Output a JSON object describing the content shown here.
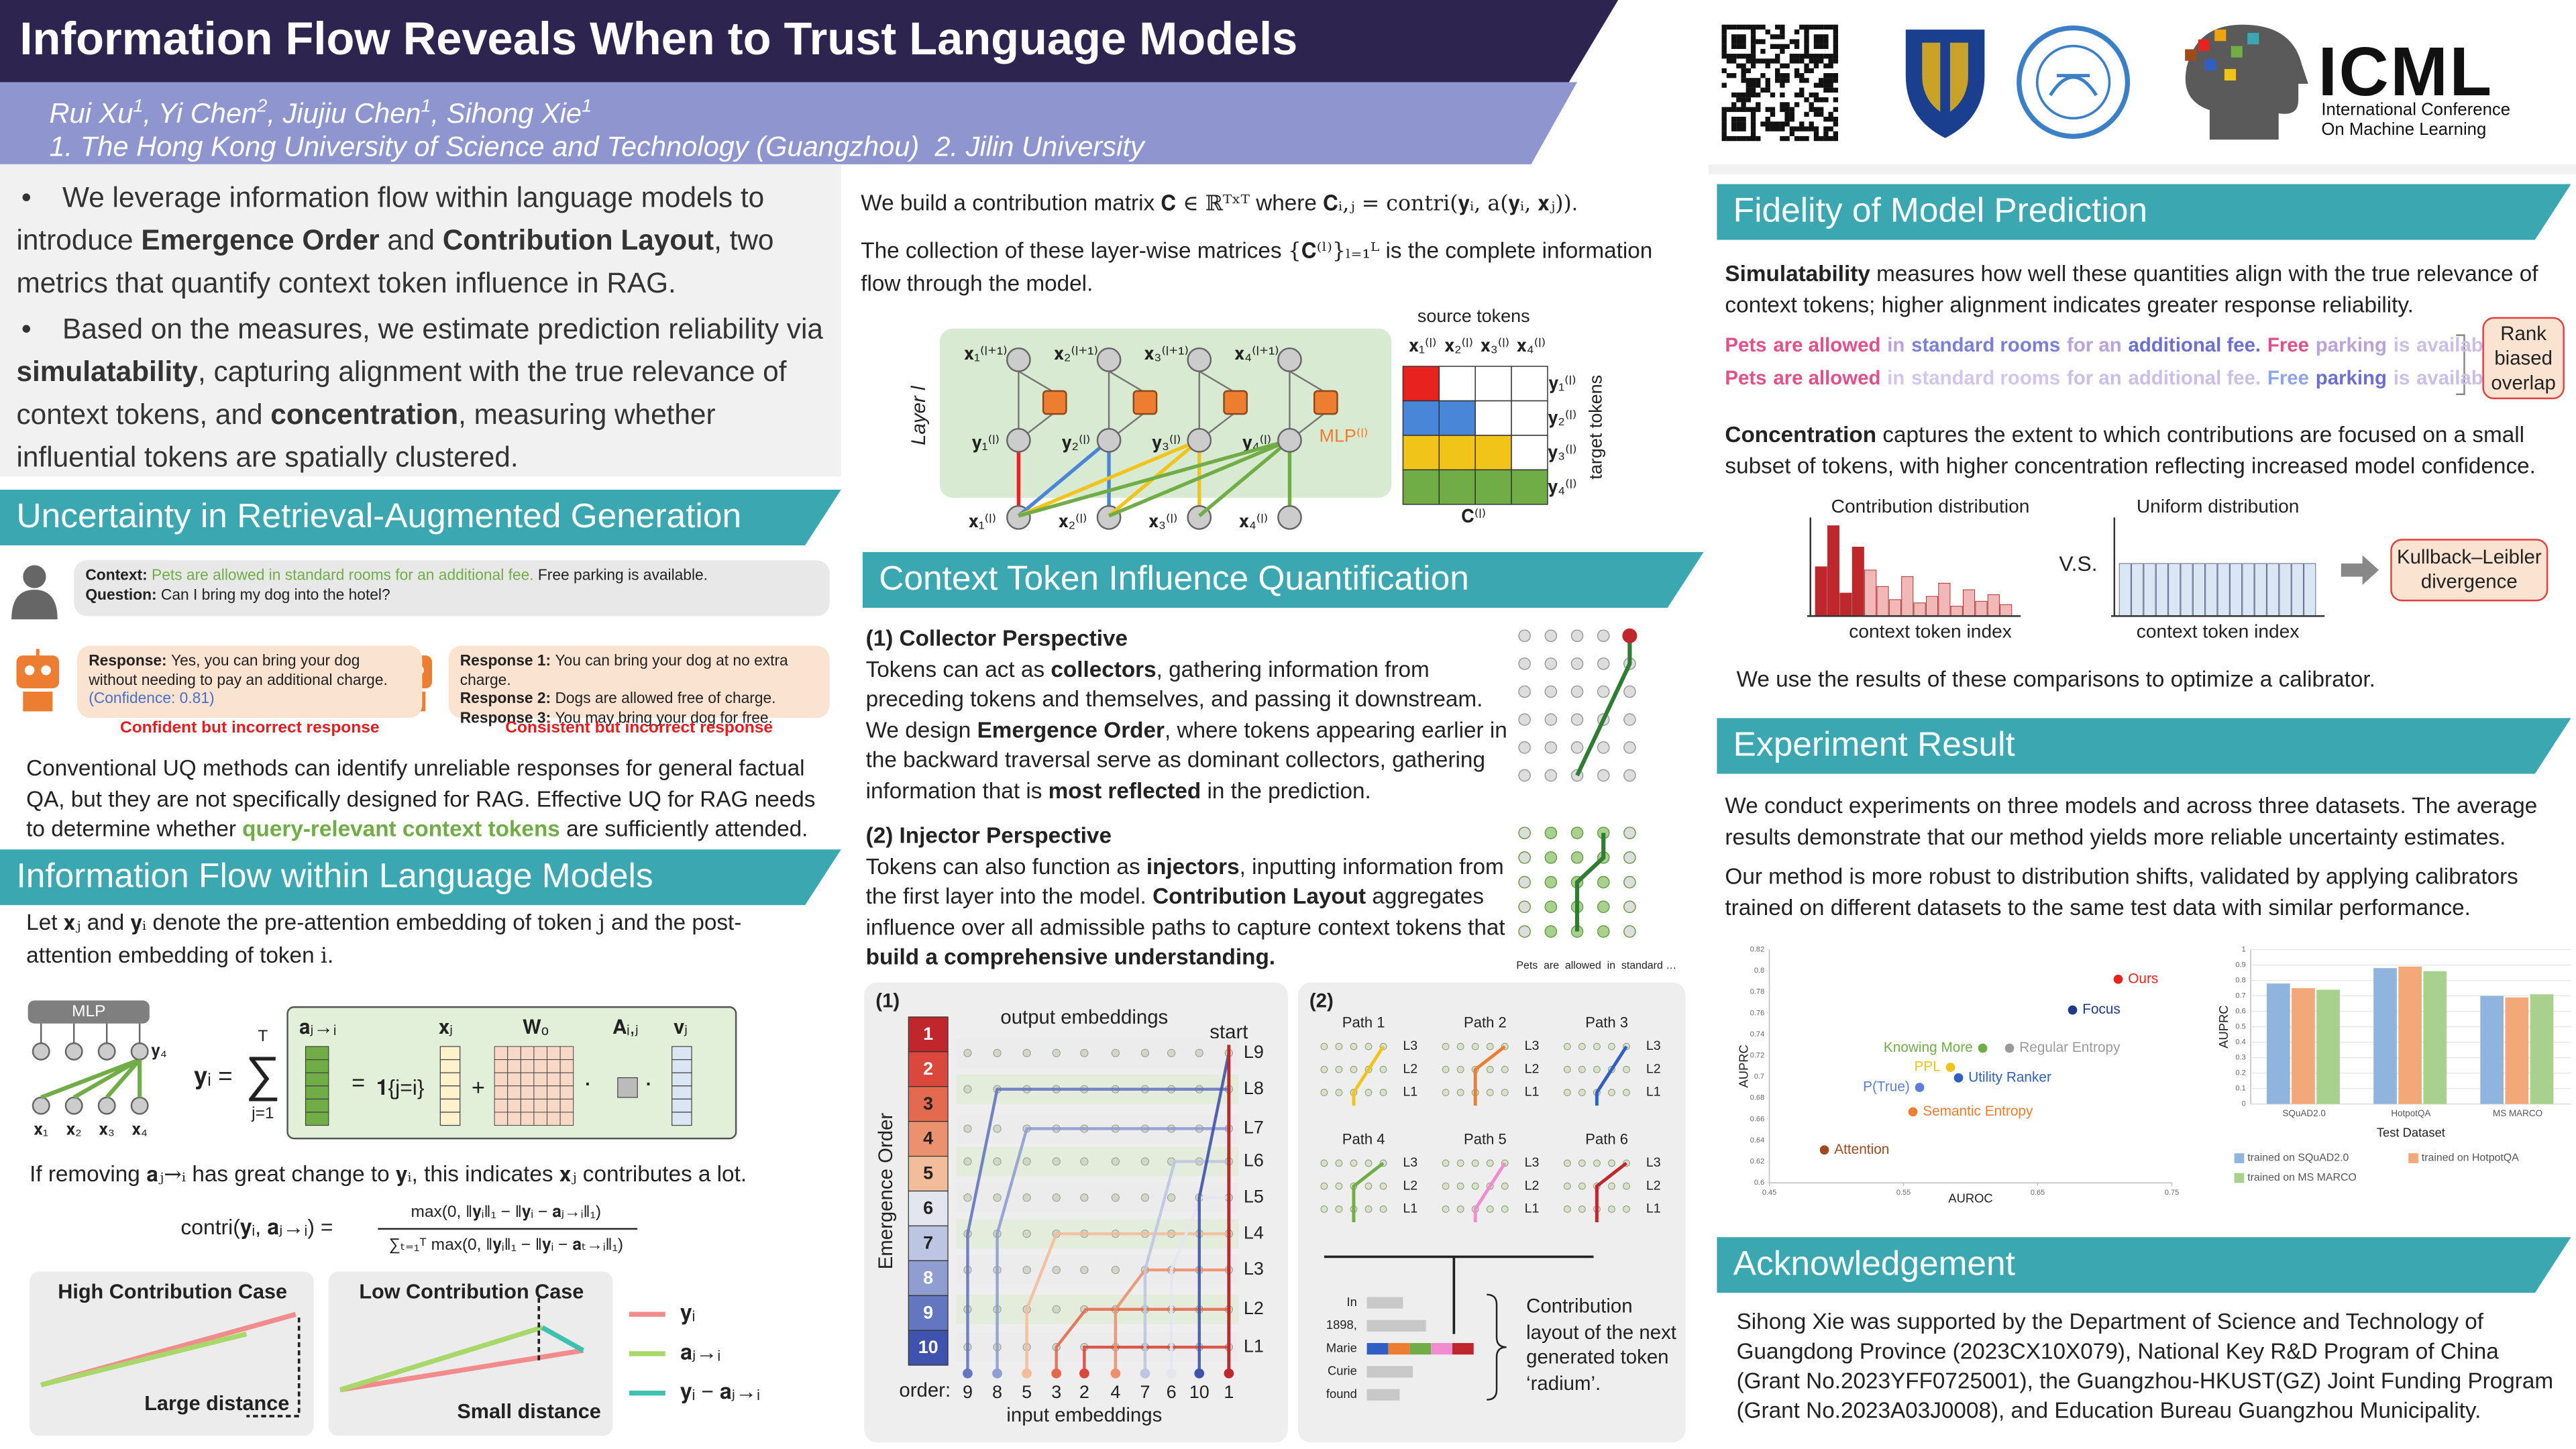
{
  "header": {
    "title": "Information Flow Reveals When to Trust Language Models",
    "authors": [
      "Rui Xu",
      {
        "sup": "1"
      },
      ", Yi Chen",
      {
        "sup": "2"
      },
      ", Jiujiu Chen",
      {
        "sup": "1"
      },
      ", Sihong Xie",
      {
        "sup": "1"
      }
    ],
    "affiliations": "1. The Hong Kong University of Science and Technology (Guangzhou)  2. Jilin University",
    "logo": {
      "name": "ICML",
      "line1": "International Conference",
      "line2": "On Machine Learning"
    }
  },
  "intro": [
    [
      "We leverage information flow within language models to introduce ",
      {
        "b": "Emergence Order"
      },
      " and ",
      {
        "b": "Contribution Layout"
      },
      ", two metrics that quantify context token influence in RAG."
    ],
    [
      "Based on the measures, we estimate prediction reliability via ",
      {
        "b": "simulatability"
      },
      ", capturing alignment with the true relevance of context tokens, and ",
      {
        "b": "concentration"
      },
      ", measuring whether influential tokens are spatially clustered."
    ]
  ],
  "rag": {
    "title": "Uncertainty in Retrieval-Augmented Generation",
    "context": [
      {
        "b": "Context: "
      },
      {
        "g": "Pets are allowed in standard rooms for an additional fee."
      },
      " Free parking is available."
    ],
    "question": [
      {
        "b": "Question: "
      },
      "Can I bring my dog into the hotel?"
    ],
    "response": [
      {
        "b": "Response: "
      },
      "Yes, you can bring your dog without needing to pay an additional charge. ",
      {
        "blue": "(Confidence: 0.81)"
      }
    ],
    "label1": "Confident but incorrect response",
    "responses": [
      [
        {
          "b": "Response 1: "
        },
        "You can bring your dog at no extra charge."
      ],
      [
        {
          "b": "Response 2: "
        },
        "Dogs are allowed free of charge."
      ],
      [
        {
          "b": "Response 3: "
        },
        "You may bring your dog for free."
      ]
    ],
    "label2": "Consistent but incorrect response",
    "paragraph": [
      "Conventional UQ methods can identify unreliable responses for general factual QA, but they are not specifically designed for RAG. Effective UQ for RAG needs to determine whether ",
      {
        "gb": "query-relevant context tokens"
      },
      " are sufficiently attended."
    ]
  },
  "flow": {
    "title": "Information Flow within Language Models",
    "intro": [
      "Let ",
      {
        "i": "𝐱ⱼ"
      },
      " and ",
      {
        "i": "𝐲ᵢ"
      },
      " denote the pre-attention embedding of token ",
      {
        "i": "j"
      },
      " and the post-attention embedding of token ",
      {
        "i": "i"
      },
      "."
    ],
    "mlp": "MLP",
    "x_labels": [
      "𝐱₁",
      "𝐱₂",
      "𝐱₃",
      "𝐱₄"
    ],
    "y_label": "𝐲₄",
    "formula": {
      "lhs": "𝐲ᵢ =",
      "sum": "∑",
      "sum_top": "T",
      "sum_bottom": "j=1",
      "a": "𝐚ⱼ→ᵢ",
      "x": "𝐱ⱼ",
      "w": "𝐖ₒ",
      "A": "𝐀ᵢ,ⱼ",
      "v": "𝐯ⱼ",
      "eq": "=",
      "ind": "𝟏{j=i}",
      "plus": "+",
      "dot": "·"
    },
    "removing": [
      "If removing ",
      {
        "i": "𝐚ⱼ→ᵢ"
      },
      " has great change to ",
      {
        "i": "𝐲ᵢ"
      },
      ", this indicates ",
      {
        "i": "𝐱ⱼ"
      },
      " contributes a lot."
    ],
    "contri": {
      "lhs": "contri(𝐲ᵢ, 𝐚ⱼ→ᵢ) =",
      "num": "max(0, ‖𝐲ᵢ‖₁ − ‖𝐲ᵢ − 𝐚ⱼ→ᵢ‖₁)",
      "den": "∑ₜ₌₁ᵀ max(0, ‖𝐲ᵢ‖₁ − ‖𝐲ᵢ − 𝐚ₜ→ᵢ‖₁)"
    },
    "cases": {
      "high": "High Contribution Case",
      "large": "Large distance",
      "low": "Low Contribution Case",
      "small": "Small distance",
      "legend": [
        "𝐲ᵢ",
        "𝐚ⱼ→ᵢ",
        "𝐲ᵢ − 𝐚ⱼ→ᵢ"
      ]
    }
  },
  "matrix": {
    "text1": [
      "We build a contribution matrix ",
      {
        "i": "𝐂 ∈ ℝᵀˣᵀ"
      },
      " where ",
      {
        "i": "𝐂ᵢ,ⱼ = contri(𝐲ᵢ, a(𝐲ᵢ, 𝐱ⱼ))"
      },
      "."
    ],
    "text2": [
      "The collection of these layer-wise matrices ",
      {
        "i": "{𝐂⁽ˡ⁾}ₗ₌₁ᴸ"
      },
      " is the complete information flow through the model."
    ],
    "top": [
      "𝐱₁⁽ˡ⁺¹⁾",
      "𝐱₂⁽ˡ⁺¹⁾",
      "𝐱₃⁽ˡ⁺¹⁾",
      "𝐱₄⁽ˡ⁺¹⁾"
    ],
    "mid": [
      "𝐲₁⁽ˡ⁾",
      "𝐲₂⁽ˡ⁾",
      "𝐲₃⁽ˡ⁾",
      "𝐲₄⁽ˡ⁾"
    ],
    "bottom": [
      "𝐱₁⁽ˡ⁾",
      "𝐱₂⁽ˡ⁾",
      "𝐱₃⁽ˡ⁾",
      "𝐱₄⁽ˡ⁾"
    ],
    "layer": "Layer l",
    "mlp": "MLP⁽ˡ⁾",
    "source": "source tokens",
    "target": "target tokens",
    "C": "𝐂⁽ˡ⁾"
  },
  "influence": {
    "title": "Context Token Influence Quantification",
    "collector_head": [
      {
        "b": "(1) Collector Perspective"
      }
    ],
    "collector": [
      "Tokens can act as ",
      {
        "b": "collectors"
      },
      ", gathering information from preceding tokens and themselves, and passing it downstream. We design ",
      {
        "b": "Emergence Order"
      },
      ", where tokens appearing earlier in the backward traversal serve as dominant collectors, gathering information that is ",
      {
        "b": "most reflected"
      },
      " in the prediction."
    ],
    "injector_head": [
      {
        "b": "(2) Injector Perspective"
      }
    ],
    "injector": [
      "Tokens can also function as ",
      {
        "b": "injectors"
      },
      ", inputting information from the first layer into the model. ",
      {
        "b": "Contribution Layout"
      },
      " aggregates influence over all admissible paths to capture context tokens that ",
      {
        "b": "build a comprehensive understanding."
      }
    ],
    "injector_tokens": "Pets  are  allowed  in  standard …"
  },
  "fig1": {
    "label": "(1)",
    "output": "output embeddings",
    "start": "start",
    "axis": "Emergence Order",
    "emergence": [
      1,
      2,
      3,
      4,
      5,
      6,
      7,
      8,
      9,
      10
    ],
    "layers": [
      "L9",
      "L8",
      "L7",
      "L6",
      "L5",
      "L4",
      "L3",
      "L2",
      "L1"
    ],
    "order_label": "order:",
    "order": [
      9,
      8,
      5,
      3,
      2,
      4,
      7,
      6,
      10,
      1
    ],
    "input": "input embeddings"
  },
  "fig2": {
    "label": "(2)",
    "paths": [
      "Path 1",
      "Path 2",
      "Path 3",
      "Path 4",
      "Path 5",
      "Path 6"
    ],
    "layers": [
      "L3",
      "L2",
      "L1"
    ],
    "tokens": [
      "In",
      "1898,",
      "Marie",
      "Curie",
      "found"
    ],
    "caption": "Contribution layout of the next generated token ‘radium’."
  },
  "fidelity": {
    "title": "Fidelity of Model Prediction",
    "sim": [
      {
        "b": "Simulatability"
      },
      " measures how well these quantities align with the true relevance of context tokens; higher alignment indicates greater response reliability."
    ],
    "tokens": [
      "Pets",
      "are allowed",
      "in",
      "standard rooms",
      "for an",
      "additional fee.",
      "Free",
      "parking",
      "is",
      "available."
    ],
    "rows": [
      [
        "#e0508a",
        "#e0508a",
        "#b9a3d8",
        "#7b7fd6",
        "#b9a3d8",
        "#6c6fd0",
        "#e0508a",
        "#b9a3d8",
        "#cbbfe6",
        "#cbbfe6"
      ],
      [
        "#e0508a",
        "#e0508a",
        "#d2c6ea",
        "#d2c6ea",
        "#cbbfe6",
        "#cbbfe6",
        "#8fa6e6",
        "#6c6fd0",
        "#cbbfe6",
        "#cbbfe6"
      ]
    ],
    "rbo": "Rank biased overlap",
    "conc": [
      {
        "b": "Concentration"
      },
      " captures the extent to which contributions are focused on a small subset of tokens, with higher concentration reflecting increased model confidence."
    ],
    "contrib": "Contribution distribution",
    "index": "context token index",
    "uniform": "Uniform distribution",
    "vs": "V.S.",
    "kl": "Kullback–Leibler divergence",
    "use": "We use the results of these comparisons to optimize a calibrator."
  },
  "experiment": {
    "title": "Experiment Result",
    "p1": "We conduct experiments on three models and across three datasets. The average results demonstrate that our method yields more reliable uncertainty estimates.",
    "p2": "Our method is more robust to distribution shifts, validated by applying calibrators trained on different datasets to the same test data with similar performance."
  },
  "ack": {
    "title": "Acknowledgement",
    "text": "Sihong Xie was supported by the Department of Science and Technology of Guangdong Province (2023CX10X079), National Key R&D Program of China (Grant No.2023YFF0725001), the Guangzhou-HKUST(GZ) Joint Funding Program (Grant No.2023A03J0008), and Education Bureau Guangzhou Municipality."
  },
  "chart_data": [
    {
      "type": "scatter",
      "xlabel": "AUROC",
      "ylabel": "AUPRC",
      "xlim": [
        0.45,
        0.75
      ],
      "xticks": [
        0.45,
        0.55,
        0.65,
        0.75
      ],
      "ylim": [
        0.6,
        0.82
      ],
      "yticks": [
        0.6,
        0.62,
        0.64,
        0.66,
        0.68,
        0.7,
        0.72,
        0.74,
        0.76,
        0.78,
        0.8,
        0.82
      ],
      "series": [
        {
          "name": "Ours",
          "color": "#e8221f",
          "x": [
            0.71
          ],
          "values": [
            0.792
          ]
        },
        {
          "name": "Focus",
          "color": "#1f3a8a",
          "x": [
            0.676
          ],
          "values": [
            0.763
          ]
        },
        {
          "name": "Regular Entropy",
          "color": "#9a9a9a",
          "x": [
            0.629
          ],
          "values": [
            0.727
          ]
        },
        {
          "name": "Knowing More",
          "color": "#70ad47",
          "x": [
            0.609
          ],
          "values": [
            0.727
          ]
        },
        {
          "name": "PPL",
          "color": "#f0c419",
          "x": [
            0.585
          ],
          "values": [
            0.709
          ]
        },
        {
          "name": "Utility Ranker",
          "color": "#2f5fc4",
          "x": [
            0.591
          ],
          "values": [
            0.699
          ]
        },
        {
          "name": "P(True)",
          "color": "#5b7fd6",
          "x": [
            0.562
          ],
          "values": [
            0.69
          ]
        },
        {
          "name": "Semantic Entropy",
          "color": "#ed7d31",
          "x": [
            0.557
          ],
          "values": [
            0.667
          ]
        },
        {
          "name": "Attention",
          "color": "#9e4a1c",
          "x": [
            0.491
          ],
          "values": [
            0.631
          ]
        }
      ]
    },
    {
      "type": "bar",
      "xlabel": "Test Dataset",
      "ylabel": "AUPRC",
      "categories": [
        "SQuAD2.0",
        "HotpotQA",
        "MS MARCO"
      ],
      "ylim": [
        0,
        1
      ],
      "yticks": [
        0,
        0.1,
        0.2,
        0.3,
        0.4,
        0.5,
        0.6,
        0.7,
        0.8,
        0.9,
        1
      ],
      "series": [
        {
          "name": "trained on SQuAD2.0",
          "color": "#8fb4de",
          "values": [
            0.78,
            0.88,
            0.7
          ]
        },
        {
          "name": "trained on HotpotQA",
          "color": "#f3a879",
          "values": [
            0.75,
            0.89,
            0.69
          ]
        },
        {
          "name": "trained on MS MARCO",
          "color": "#a9d18e",
          "values": [
            0.74,
            0.86,
            0.71
          ]
        }
      ]
    }
  ]
}
